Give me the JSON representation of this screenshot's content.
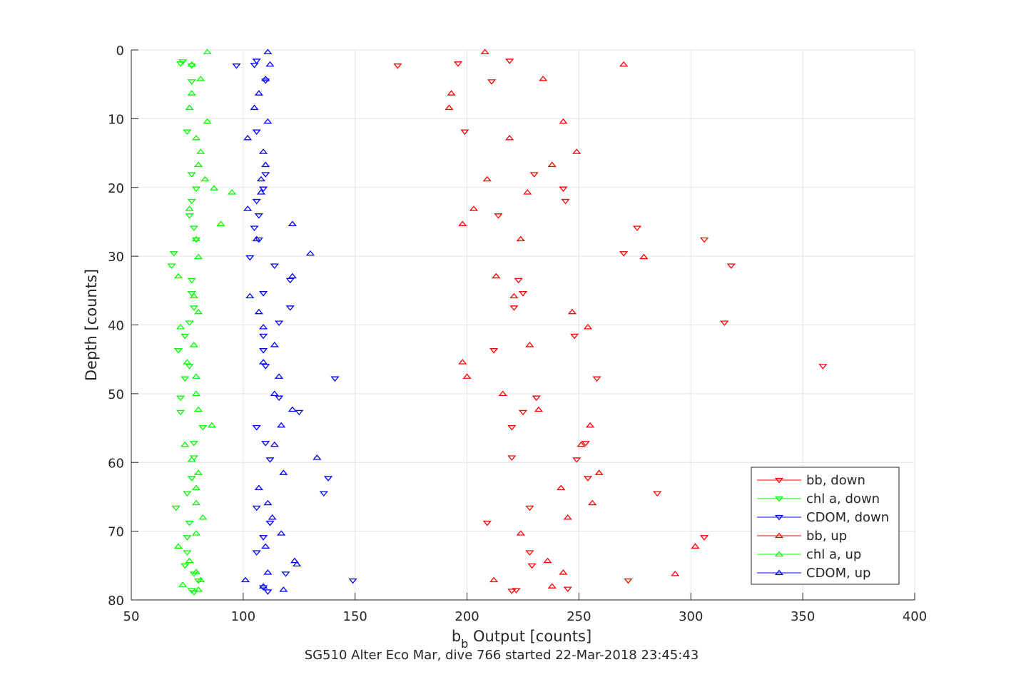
{
  "chart_data": {
    "type": "scatter",
    "xlabel_main": "b",
    "xlabel_sub": "b",
    "xlabel_rest": " Output [counts]",
    "ylabel": "Depth [counts]",
    "caption": "SG510 Alter Eco Mar, dive 766 started 22-Mar-2018 23:45:43",
    "xlim": [
      50,
      400
    ],
    "ylim": [
      0,
      80
    ],
    "y_reversed": true,
    "grid": true,
    "legend_position": "bottom-right",
    "x_ticks": [
      50,
      100,
      150,
      200,
      250,
      300,
      350,
      400
    ],
    "y_ticks": [
      0,
      10,
      20,
      30,
      40,
      50,
      60,
      70,
      80
    ],
    "series": [
      {
        "name": "bb, down",
        "color": "#ff0000",
        "marker": "triangle-down",
        "points": [
          [
            219,
            1.6
          ],
          [
            196,
            2.0
          ],
          [
            169,
            2.3
          ],
          [
            211,
            4.6
          ],
          [
            199,
            11.9
          ],
          [
            230,
            18.1
          ],
          [
            243,
            20.2
          ],
          [
            244,
            22.0
          ],
          [
            214,
            24.1
          ],
          [
            276,
            25.9
          ],
          [
            306,
            27.6
          ],
          [
            270,
            29.6
          ],
          [
            318,
            31.4
          ],
          [
            223,
            33.5
          ],
          [
            225,
            35.4
          ],
          [
            221,
            37.5
          ],
          [
            315,
            39.7
          ],
          [
            248,
            41.6
          ],
          [
            212,
            43.7
          ],
          [
            359,
            46.0
          ],
          [
            258,
            47.8
          ],
          [
            231,
            50.6
          ],
          [
            225,
            52.7
          ],
          [
            220,
            54.9
          ],
          [
            253,
            57.2
          ],
          [
            220,
            59.3
          ],
          [
            249,
            59.6
          ],
          [
            254,
            62.3
          ],
          [
            285,
            64.5
          ],
          [
            228,
            66.6
          ],
          [
            209,
            68.8
          ],
          [
            306,
            70.9
          ],
          [
            228,
            73.1
          ],
          [
            229,
            75.0
          ],
          [
            272,
            77.2
          ],
          [
            245,
            78.4
          ],
          [
            222,
            78.6
          ],
          [
            220,
            78.7
          ]
        ]
      },
      {
        "name": "chl a, down",
        "color": "#00ff00",
        "marker": "triangle-down",
        "points": [
          [
            73,
            1.7
          ],
          [
            72,
            2.0
          ],
          [
            77,
            2.3
          ],
          [
            77,
            4.6
          ],
          [
            75,
            11.9
          ],
          [
            77,
            18.1
          ],
          [
            79,
            20.2
          ],
          [
            77,
            22.0
          ],
          [
            76,
            24.1
          ],
          [
            78,
            25.9
          ],
          [
            79,
            27.6
          ],
          [
            69,
            29.6
          ],
          [
            68,
            31.4
          ],
          [
            77,
            33.5
          ],
          [
            77,
            35.4
          ],
          [
            78,
            37.5
          ],
          [
            76,
            39.7
          ],
          [
            74,
            41.6
          ],
          [
            71,
            43.7
          ],
          [
            76,
            46.0
          ],
          [
            74,
            47.8
          ],
          [
            72,
            50.6
          ],
          [
            72,
            52.7
          ],
          [
            82,
            54.9
          ],
          [
            78,
            57.2
          ],
          [
            78,
            59.3
          ],
          [
            77,
            62.3
          ],
          [
            75,
            64.5
          ],
          [
            70,
            66.6
          ],
          [
            76,
            68.8
          ],
          [
            75,
            70.9
          ],
          [
            75,
            73.1
          ],
          [
            74,
            75.0
          ],
          [
            78,
            76.2
          ],
          [
            80,
            77.2
          ],
          [
            77,
            78.6
          ],
          [
            78,
            78.9
          ]
        ]
      },
      {
        "name": "CDOM, down",
        "color": "#0000ff",
        "marker": "triangle-down",
        "points": [
          [
            106,
            1.6
          ],
          [
            105,
            2.2
          ],
          [
            97,
            2.3
          ],
          [
            110,
            4.5
          ],
          [
            106,
            11.9
          ],
          [
            110,
            18.1
          ],
          [
            109,
            20.2
          ],
          [
            106,
            22.0
          ],
          [
            107,
            24.1
          ],
          [
            105,
            25.9
          ],
          [
            107,
            27.6
          ],
          [
            103,
            30.2
          ],
          [
            114,
            31.4
          ],
          [
            121,
            33.5
          ],
          [
            109,
            35.4
          ],
          [
            121,
            37.5
          ],
          [
            116,
            39.7
          ],
          [
            109,
            41.6
          ],
          [
            109,
            43.7
          ],
          [
            110,
            46.0
          ],
          [
            141,
            47.8
          ],
          [
            116,
            50.6
          ],
          [
            125,
            52.7
          ],
          [
            106,
            54.9
          ],
          [
            110,
            57.2
          ],
          [
            112,
            59.6
          ],
          [
            138,
            62.3
          ],
          [
            136,
            64.5
          ],
          [
            106,
            66.6
          ],
          [
            112,
            68.8
          ],
          [
            109,
            70.9
          ],
          [
            106,
            73.1
          ],
          [
            119,
            76.2
          ],
          [
            149,
            77.2
          ],
          [
            109,
            78.2
          ],
          [
            111,
            78.8
          ]
        ]
      },
      {
        "name": "bb, up",
        "color": "#ff0000",
        "marker": "triangle-up",
        "points": [
          [
            208,
            0.3
          ],
          [
            270,
            2.1
          ],
          [
            234,
            4.2
          ],
          [
            193,
            6.3
          ],
          [
            192,
            8.4
          ],
          [
            243,
            10.4
          ],
          [
            219,
            12.8
          ],
          [
            249,
            14.8
          ],
          [
            238,
            16.7
          ],
          [
            209,
            18.8
          ],
          [
            227,
            20.7
          ],
          [
            203,
            23.1
          ],
          [
            198,
            25.3
          ],
          [
            224,
            27.5
          ],
          [
            279,
            30.1
          ],
          [
            213,
            32.9
          ],
          [
            221,
            35.8
          ],
          [
            247,
            38.1
          ],
          [
            254,
            40.3
          ],
          [
            228,
            42.9
          ],
          [
            198,
            45.4
          ],
          [
            200,
            47.5
          ],
          [
            216,
            50.0
          ],
          [
            232,
            52.3
          ],
          [
            255,
            54.6
          ],
          [
            251,
            57.4
          ],
          [
            259,
            61.5
          ],
          [
            242,
            63.7
          ],
          [
            256,
            65.9
          ],
          [
            245,
            68.0
          ],
          [
            224,
            70.3
          ],
          [
            302,
            72.2
          ],
          [
            236,
            74.3
          ],
          [
            293,
            76.2
          ],
          [
            243,
            76.0
          ],
          [
            212,
            77.1
          ],
          [
            238,
            78.0
          ]
        ]
      },
      {
        "name": "chl a, up",
        "color": "#00ff00",
        "marker": "triangle-up",
        "points": [
          [
            84,
            0.3
          ],
          [
            77,
            2.1
          ],
          [
            81,
            4.2
          ],
          [
            77,
            6.3
          ],
          [
            76,
            8.4
          ],
          [
            84,
            10.4
          ],
          [
            79,
            12.8
          ],
          [
            81,
            14.8
          ],
          [
            80,
            16.7
          ],
          [
            83,
            18.8
          ],
          [
            87,
            20.1
          ],
          [
            95,
            20.7
          ],
          [
            76,
            23.1
          ],
          [
            90,
            25.3
          ],
          [
            79,
            27.5
          ],
          [
            80,
            30.1
          ],
          [
            71,
            32.9
          ],
          [
            78,
            35.8
          ],
          [
            80,
            38.1
          ],
          [
            72,
            40.3
          ],
          [
            78,
            42.9
          ],
          [
            75,
            45.4
          ],
          [
            79,
            47.5
          ],
          [
            79,
            50.0
          ],
          [
            80,
            52.3
          ],
          [
            86,
            54.6
          ],
          [
            74,
            57.4
          ],
          [
            77,
            59.6
          ],
          [
            80,
            61.5
          ],
          [
            79,
            63.7
          ],
          [
            79,
            65.9
          ],
          [
            82,
            68.0
          ],
          [
            79,
            70.3
          ],
          [
            71,
            72.2
          ],
          [
            76,
            74.3
          ],
          [
            79,
            75.9
          ],
          [
            81,
            77.1
          ],
          [
            73,
            77.8
          ],
          [
            80,
            78.5
          ]
        ]
      },
      {
        "name": "CDOM, up",
        "color": "#0000ff",
        "marker": "triangle-up",
        "points": [
          [
            111,
            0.3
          ],
          [
            112,
            2.1
          ],
          [
            110,
            4.2
          ],
          [
            107,
            6.3
          ],
          [
            105,
            8.4
          ],
          [
            111,
            10.4
          ],
          [
            102,
            12.8
          ],
          [
            109,
            14.8
          ],
          [
            110,
            16.7
          ],
          [
            108,
            18.8
          ],
          [
            108,
            20.7
          ],
          [
            102,
            23.1
          ],
          [
            122,
            25.3
          ],
          [
            106,
            27.5
          ],
          [
            130,
            29.6
          ],
          [
            122,
            32.9
          ],
          [
            103,
            35.8
          ],
          [
            107,
            38.1
          ],
          [
            109,
            40.3
          ],
          [
            114,
            42.9
          ],
          [
            109,
            45.4
          ],
          [
            116,
            47.5
          ],
          [
            114,
            50.0
          ],
          [
            122,
            52.3
          ],
          [
            117,
            54.6
          ],
          [
            114,
            57.4
          ],
          [
            133,
            59.3
          ],
          [
            118,
            61.5
          ],
          [
            107,
            63.7
          ],
          [
            111,
            65.9
          ],
          [
            113,
            68.0
          ],
          [
            117,
            70.3
          ],
          [
            110,
            72.2
          ],
          [
            123,
            74.3
          ],
          [
            124,
            74.8
          ],
          [
            111,
            76.0
          ],
          [
            101,
            77.1
          ],
          [
            109,
            78.0
          ],
          [
            118,
            78.5
          ]
        ]
      }
    ]
  }
}
